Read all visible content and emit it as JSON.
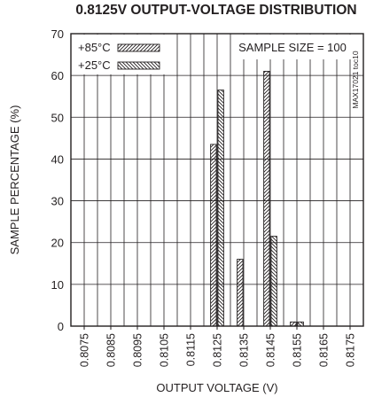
{
  "chart_data": {
    "type": "bar",
    "title": "0.8125V OUTPUT-VOLTAGE DISTRIBUTION",
    "xlabel": "OUTPUT VOLTAGE (V)",
    "ylabel": "SAMPLE PERCENTAGE (%)",
    "ylim": [
      0,
      70
    ],
    "yticks": [
      "0",
      "10",
      "20",
      "30",
      "40",
      "50",
      "60",
      "70"
    ],
    "xticks": [
      "0.8075",
      "0.8085",
      "0.8095",
      "0.8105",
      "0.8115",
      "0.8125",
      "0.8135",
      "0.8145",
      "0.8155",
      "0.8165",
      "0.8175"
    ],
    "x_range": [
      0.807,
      0.818
    ],
    "grid": true,
    "annotation": "SAMPLE SIZE = 100",
    "side_label": "MAX17021 toc10",
    "legend_position": "top-left",
    "categories": [
      0.8125,
      0.8135,
      0.8145,
      0.8155
    ],
    "series": [
      {
        "name": "+85°C",
        "pattern": "forward-hatch",
        "values": [
          43.5,
          16,
          61,
          1
        ]
      },
      {
        "name": "+25°C",
        "pattern": "back-hatch",
        "values": [
          56.5,
          0,
          21.5,
          1
        ]
      }
    ]
  }
}
